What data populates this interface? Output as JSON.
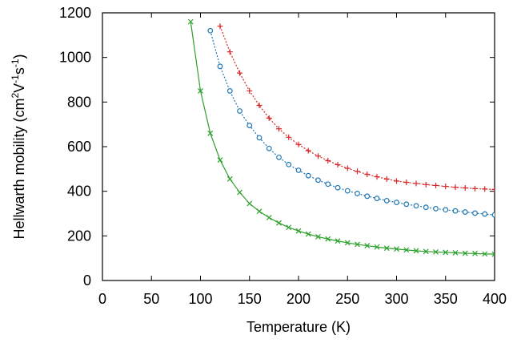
{
  "chart_data": {
    "type": "line",
    "xlabel": "Temperature (K)",
    "ylabel": [
      "Hellwarth mobility (cm",
      "2",
      "V",
      "-1",
      "s",
      "-1",
      ")"
    ],
    "xlim": [
      0,
      400
    ],
    "xticks": [
      0,
      50,
      100,
      150,
      200,
      250,
      300,
      350,
      400
    ],
    "ylim": [
      0,
      1200
    ],
    "yticks": [
      0,
      200,
      400,
      600,
      800,
      1000,
      1200
    ],
    "series": [
      {
        "color": "#d62728",
        "marker": "plus",
        "linestyle": "dotted",
        "x": [
          120,
          130,
          140,
          150,
          160,
          170,
          180,
          190,
          200,
          210,
          220,
          230,
          240,
          250,
          260,
          270,
          280,
          290,
          300,
          310,
          320,
          330,
          340,
          350,
          360,
          370,
          380,
          390,
          400
        ],
        "values": [
          1140,
          1025,
          930,
          850,
          785,
          728,
          680,
          642,
          610,
          582,
          558,
          537,
          519,
          503,
          489,
          476,
          465,
          455,
          446,
          440,
          435,
          430,
          426,
          422,
          418,
          415,
          412,
          410,
          408
        ]
      },
      {
        "color": "#1f77b4",
        "marker": "circle",
        "linestyle": "dotted",
        "x": [
          110,
          120,
          130,
          140,
          150,
          160,
          170,
          180,
          190,
          200,
          210,
          220,
          230,
          240,
          250,
          260,
          270,
          280,
          290,
          300,
          310,
          320,
          330,
          340,
          350,
          360,
          370,
          380,
          390,
          400
        ],
        "values": [
          1120,
          960,
          850,
          760,
          695,
          640,
          592,
          552,
          520,
          494,
          470,
          450,
          432,
          416,
          402,
          390,
          378,
          368,
          358,
          350,
          342,
          335,
          328,
          322,
          317,
          312,
          307,
          302,
          298,
          294
        ]
      },
      {
        "color": "#2ca02c",
        "marker": "cross",
        "linestyle": "solid",
        "x": [
          90,
          100,
          110,
          120,
          130,
          140,
          150,
          160,
          170,
          180,
          190,
          200,
          210,
          220,
          230,
          240,
          250,
          260,
          270,
          280,
          290,
          300,
          310,
          320,
          330,
          340,
          350,
          360,
          370,
          380,
          390,
          400
        ],
        "values": [
          1160,
          850,
          660,
          540,
          455,
          395,
          345,
          310,
          282,
          258,
          238,
          222,
          208,
          196,
          186,
          177,
          169,
          162,
          156,
          150,
          145,
          141,
          137,
          133,
          130,
          128,
          126,
          124,
          122,
          121,
          119,
          118
        ]
      }
    ]
  }
}
